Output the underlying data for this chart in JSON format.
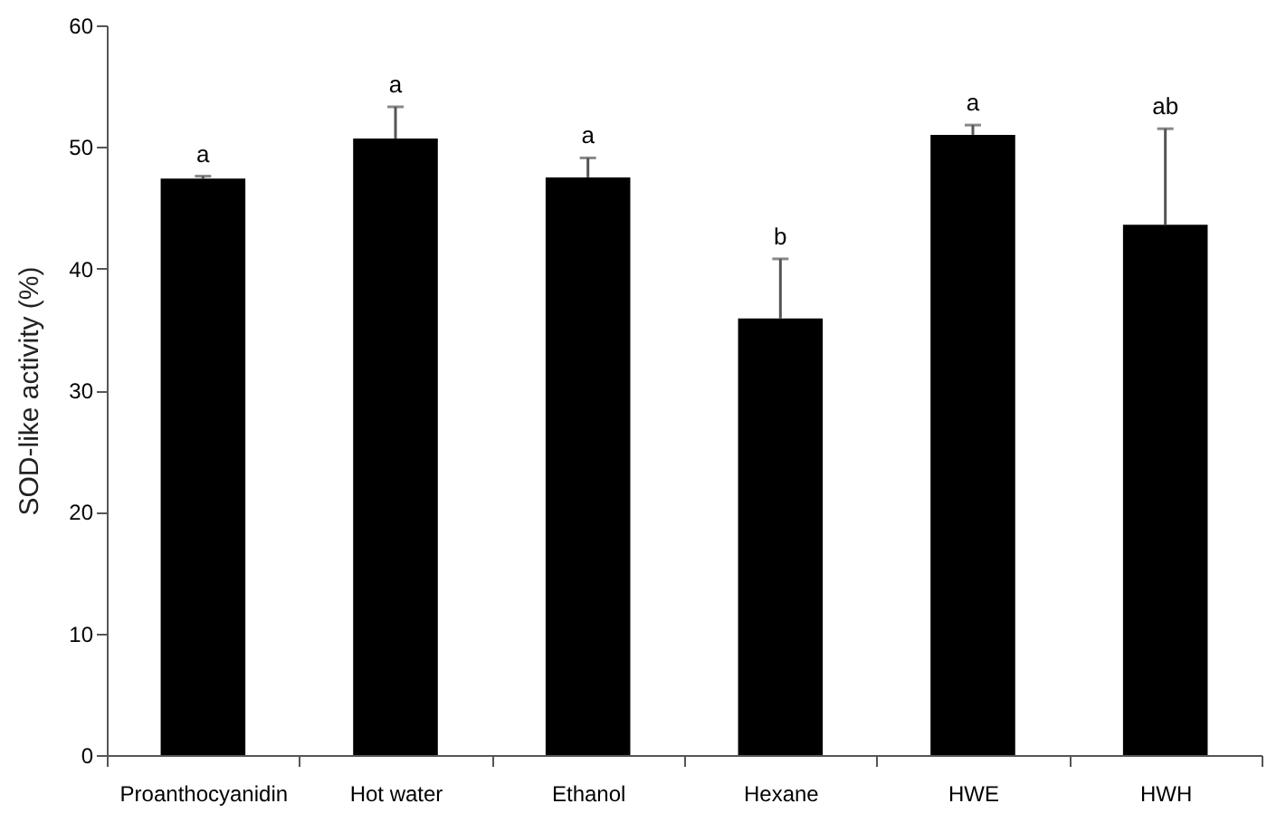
{
  "chart_data": {
    "type": "bar",
    "ylabel": "SOD-like activity (%)",
    "categories": [
      "Proanthocyanidin",
      "Hot water",
      "Ethanol",
      "Hexane",
      "HWE",
      "HWH"
    ],
    "values": [
      47.4,
      50.7,
      47.5,
      35.9,
      51.0,
      43.6
    ],
    "errors": [
      [
        47.4,
        47.6
      ],
      [
        50.7,
        53.3
      ],
      [
        47.5,
        49.1
      ],
      [
        35.9,
        40.8
      ],
      [
        51.0,
        51.8
      ],
      [
        43.6,
        51.5
      ]
    ],
    "color": "#000000",
    "ylim": [
      0,
      60
    ],
    "yticks": [
      0,
      10,
      20,
      30,
      40,
      50,
      60
    ],
    "grid": false,
    "annotations": [
      {
        "text": "a",
        "x": "Proanthocyanidin",
        "y": 47.6
      },
      {
        "text": "a",
        "x": "Hot water",
        "y": 53.3
      },
      {
        "text": "a",
        "x": "Ethanol",
        "y": 49.1
      },
      {
        "text": "b",
        "x": "Hexane",
        "y": 40.8
      },
      {
        "text": "a",
        "x": "HWE",
        "y": 51.8
      },
      {
        "text": "ab",
        "x": "HWH",
        "y": 51.5
      }
    ]
  }
}
